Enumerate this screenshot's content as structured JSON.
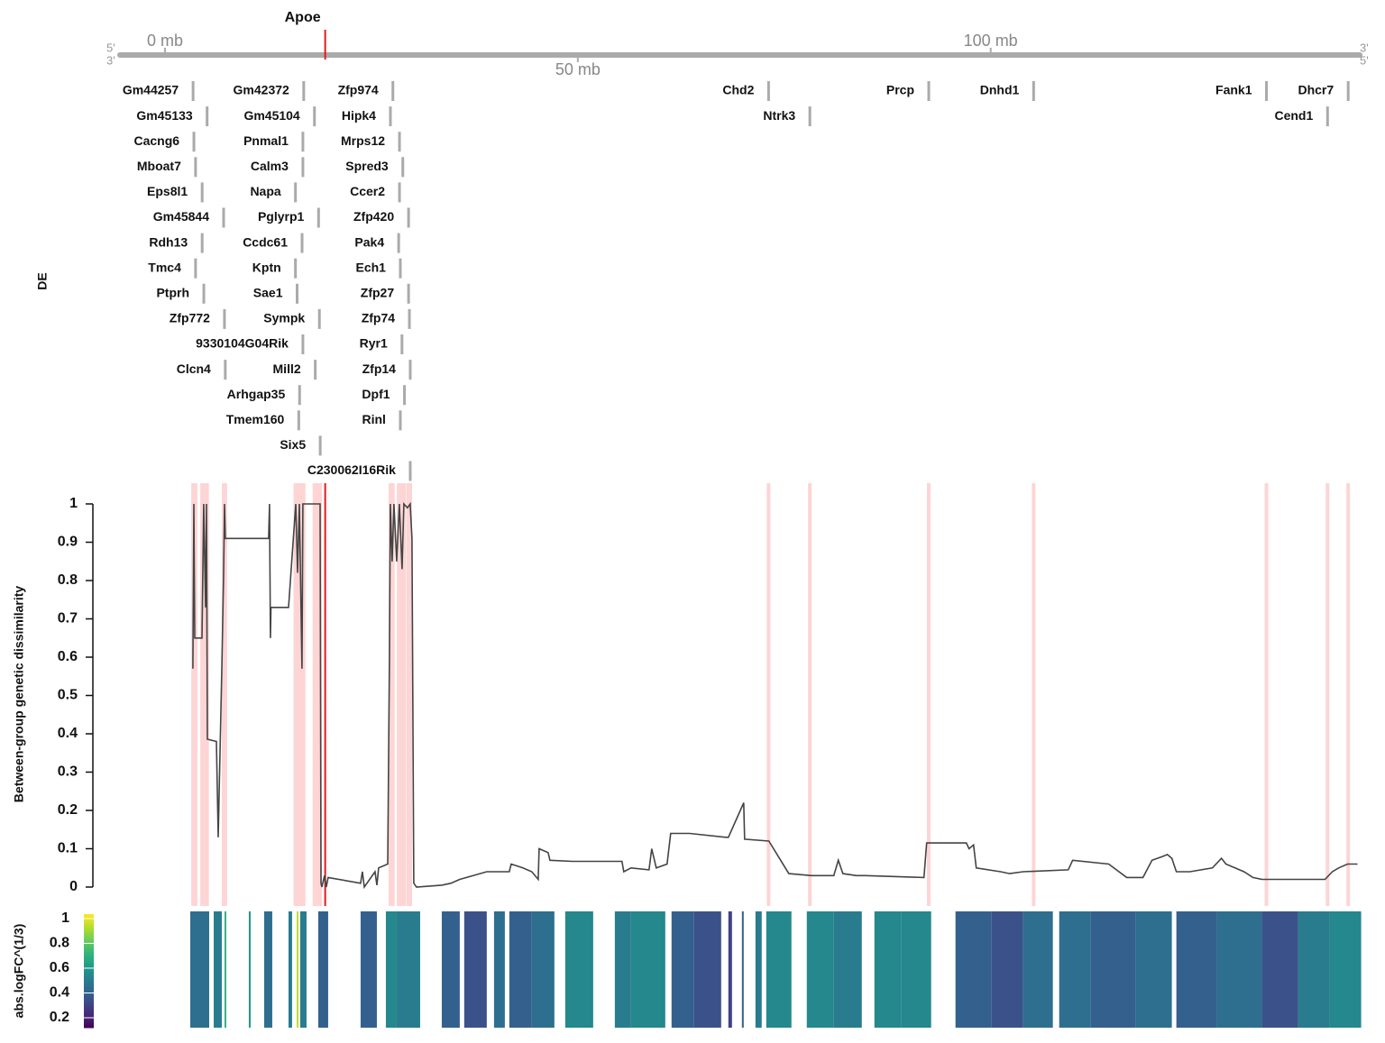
{
  "chart_data": [
    {
      "type": "gene-track",
      "xlim": [
        -5.46,
        144.7
      ],
      "xticks": [
        {
          "value": 0,
          "label": "0 mb"
        },
        {
          "value": 50,
          "label": "50 mb"
        },
        {
          "value": 100,
          "label": "100 mb"
        }
      ],
      "strand_labels": {
        "left": [
          "5'",
          "3'"
        ],
        "right": [
          "3'",
          "5'"
        ]
      },
      "ylabel": "DE",
      "highlight": {
        "name": "Apoe",
        "pos": 19.4,
        "color": "#e31a1c"
      },
      "gene_color": "#aaaaaa",
      "genes": [
        {
          "name": "Gm44257",
          "pos": 3.4
        },
        {
          "name": "Gm45133",
          "pos": 5.1
        },
        {
          "name": "Cacng6",
          "pos": 3.5
        },
        {
          "name": "Mboat7",
          "pos": 3.7
        },
        {
          "name": "Eps8l1",
          "pos": 4.5
        },
        {
          "name": "Gm45844",
          "pos": 7.1
        },
        {
          "name": "Rdh13",
          "pos": 4.5
        },
        {
          "name": "Tmc4",
          "pos": 3.7
        },
        {
          "name": "Ptprh",
          "pos": 4.7
        },
        {
          "name": "Zfp772",
          "pos": 7.2
        },
        {
          "name": "9330104G04Rik",
          "pos": 16.7
        },
        {
          "name": "Clcn4",
          "pos": 7.3
        },
        {
          "name": "Gm42372",
          "pos": 16.8
        },
        {
          "name": "Gm45104",
          "pos": 18.1
        },
        {
          "name": "Pnmal1",
          "pos": 16.7
        },
        {
          "name": "Calm3",
          "pos": 16.7
        },
        {
          "name": "Napa",
          "pos": 15.8
        },
        {
          "name": "Pglyrp1",
          "pos": 18.6
        },
        {
          "name": "Ccdc61",
          "pos": 16.6
        },
        {
          "name": "Kptn",
          "pos": 15.8
        },
        {
          "name": "Sae1",
          "pos": 16.0
        },
        {
          "name": "Sympk",
          "pos": 18.7
        },
        {
          "name": "Mill2",
          "pos": 18.2
        },
        {
          "name": "Arhgap35",
          "pos": 16.3
        },
        {
          "name": "Tmem160",
          "pos": 16.2
        },
        {
          "name": "Six5",
          "pos": 18.8
        },
        {
          "name": "Zfp974",
          "pos": 27.6
        },
        {
          "name": "Hipk4",
          "pos": 27.3
        },
        {
          "name": "Mrps12",
          "pos": 28.4
        },
        {
          "name": "Spred3",
          "pos": 28.8
        },
        {
          "name": "Ccer2",
          "pos": 28.4
        },
        {
          "name": "Zfp420",
          "pos": 29.5
        },
        {
          "name": "Pak4",
          "pos": 28.3
        },
        {
          "name": "Ech1",
          "pos": 28.5
        },
        {
          "name": "Zfp27",
          "pos": 29.5
        },
        {
          "name": "Zfp74",
          "pos": 29.6
        },
        {
          "name": "Ryr1",
          "pos": 28.7
        },
        {
          "name": "Zfp14",
          "pos": 29.7
        },
        {
          "name": "Dpf1",
          "pos": 29.0
        },
        {
          "name": "Rinl",
          "pos": 28.5
        },
        {
          "name": "C230062I16Rik",
          "pos": 29.7
        },
        {
          "name": "Chd2",
          "pos": 73.1
        },
        {
          "name": "Ntrk3",
          "pos": 78.1
        },
        {
          "name": "Prcp",
          "pos": 92.5
        },
        {
          "name": "Dnhd1",
          "pos": 105.2
        },
        {
          "name": "Fank1",
          "pos": 133.4
        },
        {
          "name": "Dhcr7",
          "pos": 143.3
        },
        {
          "name": "Cend1",
          "pos": 140.8
        }
      ]
    },
    {
      "type": "line",
      "ylabel": "Between-group genetic dissimilarity",
      "color": "#444444",
      "band_color": "#fdd5d5",
      "xlim": [
        -5.46,
        144.7
      ],
      "ylim": [
        0,
        1
      ],
      "yticks": [
        0,
        0.1,
        0.2,
        0.3,
        0.4,
        0.5,
        0.6,
        0.7,
        0.8,
        0.9,
        1
      ],
      "x": [
        3.38,
        3.49,
        3.6,
        4.48,
        4.69,
        4.91,
        5.02,
        5.13,
        6.22,
        6.44,
        6.88,
        7.1,
        7.21,
        7.31,
        12.55,
        12.66,
        12.77,
        12.83,
        14.96,
        15.83,
        16.05,
        16.27,
        16.59,
        16.7,
        18.78,
        18.89,
        19.0,
        19.32,
        19.54,
        19.76,
        23.69,
        23.91,
        24.13,
        25.44,
        25.66,
        25.87,
        26.97,
        27.18,
        27.29,
        27.51,
        27.73,
        28.06,
        28.38,
        28.71,
        28.93,
        29.37,
        29.69,
        29.91,
        30.13,
        30.46,
        33.52,
        34.61,
        35.7,
        38.97,
        41.7,
        41.92,
        43.34,
        44.43,
        45.2,
        45.31,
        46.4,
        46.62,
        49.34,
        55.35,
        55.57,
        56.44,
        58.62,
        58.95,
        59.5,
        60.81,
        61.24,
        63.54,
        67.9,
        68.23,
        70.09,
        70.2,
        73.14,
        75.55,
        78.28,
        81.0,
        81.55,
        82.1,
        83.73,
        84.83,
        91.92,
        92.25,
        97.05,
        97.38,
        97.93,
        98.25,
        101.2,
        102.29,
        103.93,
        109.39,
        109.93,
        114.3,
        116.48,
        118.45,
        119.54,
        120.85,
        121.4,
        121.94,
        122.49,
        124.13,
        126.86,
        127.95,
        128.49,
        130.68,
        131.77,
        132.86,
        140.5,
        141.38,
        142.14,
        143.23,
        144.43
      ],
      "values": [
        0.57,
        1,
        0.65,
        0.65,
        1,
        0.73,
        1,
        0.386,
        0.38,
        0.13,
        0.57,
        0.82,
        1,
        0.91,
        0.91,
        1,
        0.65,
        0.73,
        0.73,
        1,
        0.82,
        1,
        0.57,
        1,
        1,
        0.01,
        0.0,
        0.03,
        0.0,
        0.025,
        0.01,
        0.04,
        0.0,
        0.04,
        0.005,
        0.05,
        0.06,
        0.6,
        1,
        0.85,
        1,
        0.85,
        1,
        0.83,
        1,
        0.99,
        1,
        0.91,
        0.01,
        0.0,
        0.005,
        0.01,
        0.02,
        0.04,
        0.04,
        0.06,
        0.05,
        0.04,
        0.02,
        0.1,
        0.09,
        0.07,
        0.067,
        0.067,
        0.04,
        0.05,
        0.045,
        0.1,
        0.05,
        0.06,
        0.14,
        0.14,
        0.13,
        0.13,
        0.22,
        0.125,
        0.12,
        0.035,
        0.03,
        0.03,
        0.07,
        0.035,
        0.03,
        0.03,
        0.025,
        0.115,
        0.115,
        0.1,
        0.11,
        0.05,
        0.04,
        0.035,
        0.04,
        0.045,
        0.07,
        0.06,
        0.025,
        0.025,
        0.07,
        0.08,
        0.085,
        0.075,
        0.04,
        0.04,
        0.05,
        0.075,
        0.06,
        0.04,
        0.025,
        0.02,
        0.02,
        0.04,
        0.05,
        0.06,
        0.06
      ]
    },
    {
      "type": "heatmap",
      "colorbar_label": "abs.logFC^(1/3)",
      "colormap": "viridis",
      "xlim": [
        -5.46,
        144.7
      ],
      "clim": [
        0.12,
        1.036
      ],
      "cticks": [
        0.2,
        0.4,
        0.6,
        0.8,
        1
      ],
      "starts": [
        3.06,
        5.9,
        7.21,
        10.15,
        12.01,
        14.96,
        15.94,
        16.38,
        18.56,
        23.69,
        26.75,
        28.06,
        33.52,
        36.24,
        39.85,
        41.7,
        44.43,
        48.47,
        54.48,
        56.44,
        61.35,
        64.08,
        68.23,
        69.87,
        71.51,
        72.82,
        77.73,
        81.0,
        85.92,
        89.19,
        95.74,
        100.11,
        103.93,
        108.3,
        112.12,
        117.58,
        122.49,
        127.4,
        132.86,
        137.23,
        141.05
      ],
      "ends": [
        5.35,
        6.88,
        7.42,
        10.37,
        12.99,
        15.39,
        16.16,
        17.14,
        19.76,
        25.66,
        28.06,
        30.9,
        35.7,
        38.97,
        41.16,
        44.43,
        47.16,
        51.86,
        56.44,
        60.59,
        64.08,
        67.36,
        68.67,
        70.09,
        72.27,
        75.87,
        81.0,
        84.39,
        89.19,
        92.79,
        100.11,
        103.93,
        107.53,
        112.12,
        117.58,
        121.94,
        127.4,
        132.86,
        137.23,
        141.05,
        144.87
      ],
      "values": [
        0.45,
        0.5,
        0.7,
        0.6,
        0.45,
        0.5,
        0.95,
        0.5,
        0.4,
        0.4,
        0.55,
        0.5,
        0.4,
        0.35,
        0.45,
        0.4,
        0.45,
        0.55,
        0.5,
        0.55,
        0.4,
        0.35,
        0.3,
        0.4,
        0.5,
        0.55,
        0.55,
        0.5,
        0.55,
        0.55,
        0.4,
        0.35,
        0.45,
        0.45,
        0.4,
        0.45,
        0.4,
        0.45,
        0.35,
        0.5,
        0.55
      ]
    }
  ]
}
